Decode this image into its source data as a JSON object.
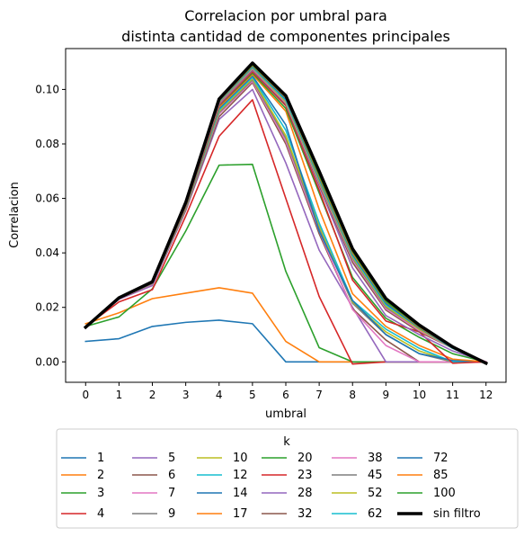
{
  "chart_data": {
    "type": "line",
    "title_lines": [
      "Correlacion por umbral para",
      "distinta cantidad de componentes principales"
    ],
    "xlabel": "umbral",
    "ylabel": "Correlacion",
    "x": [
      0,
      1,
      2,
      3,
      4,
      5,
      6,
      7,
      8,
      9,
      10,
      11,
      12
    ],
    "xticks": [
      "0",
      "1",
      "2",
      "3",
      "4",
      "5",
      "6",
      "7",
      "8",
      "9",
      "10",
      "11",
      "12"
    ],
    "yticks": [
      {
        "value": 0.0,
        "label": "0.00"
      },
      {
        "value": 0.02,
        "label": "0.02"
      },
      {
        "value": 0.04,
        "label": "0.04"
      },
      {
        "value": 0.06,
        "label": "0.06"
      },
      {
        "value": 0.08,
        "label": "0.08"
      },
      {
        "value": 0.1,
        "label": "0.10"
      }
    ],
    "xlim": [
      -0.6,
      12.6
    ],
    "ylim": [
      -0.0075,
      0.115
    ],
    "grid": false,
    "legend": {
      "title": "k",
      "placement": "below",
      "columns": 6
    },
    "series": [
      {
        "name": "1",
        "color": "#1f77b4",
        "values": [
          0.0075,
          0.0085,
          0.013,
          0.0145,
          0.0153,
          0.014,
          0.0,
          0.0,
          0.0,
          0.0,
          0.0,
          0.0,
          0.0
        ]
      },
      {
        "name": "2",
        "color": "#ff7f0e",
        "values": [
          0.014,
          0.018,
          0.0232,
          0.0252,
          0.0272,
          0.0252,
          0.0075,
          0.0,
          0.0,
          0.0,
          0.0,
          0.0,
          0.0
        ]
      },
      {
        "name": "3",
        "color": "#2ca02c",
        "values": [
          0.013,
          0.0165,
          0.0268,
          0.048,
          0.0722,
          0.0725,
          0.0332,
          0.0052,
          0.0,
          0.0,
          0.0,
          0.0,
          0.0
        ]
      },
      {
        "name": "4",
        "color": "#d62728",
        "values": [
          0.013,
          0.022,
          0.0265,
          0.0535,
          0.0828,
          0.0962,
          0.06,
          0.024,
          -0.0008,
          0.0,
          0.0,
          0.0,
          0.0
        ]
      },
      {
        "name": "5",
        "color": "#9467bd",
        "values": [
          0.013,
          0.023,
          0.028,
          0.0555,
          0.089,
          0.1,
          0.073,
          0.041,
          0.02,
          0.0,
          0.0,
          0.0,
          0.0
        ]
      },
      {
        "name": "6",
        "color": "#8c564b",
        "values": [
          0.013,
          0.0232,
          0.0285,
          0.0558,
          0.09,
          0.1025,
          0.08,
          0.047,
          0.0195,
          0.008,
          0.0,
          0.0,
          0.0
        ]
      },
      {
        "name": "7",
        "color": "#e377c2",
        "values": [
          0.013,
          0.0233,
          0.0285,
          0.0562,
          0.091,
          0.103,
          0.081,
          0.048,
          0.0192,
          0.006,
          0.0,
          0.0,
          0.0
        ]
      },
      {
        "name": "9",
        "color": "#7f7f7f",
        "values": [
          0.013,
          0.0233,
          0.0287,
          0.0563,
          0.0915,
          0.1035,
          0.082,
          0.049,
          0.0215,
          0.01,
          0.003,
          0.0,
          0.0
        ]
      },
      {
        "name": "10",
        "color": "#bcbd22",
        "values": [
          0.013,
          0.0233,
          0.0288,
          0.0565,
          0.092,
          0.104,
          0.083,
          0.05,
          0.022,
          0.011,
          0.004,
          0.0,
          0.0
        ]
      },
      {
        "name": "12",
        "color": "#17becf",
        "values": [
          0.013,
          0.0234,
          0.0288,
          0.0567,
          0.0925,
          0.1045,
          0.085,
          0.051,
          0.0225,
          0.012,
          0.005,
          0.0,
          0.0
        ]
      },
      {
        "name": "14",
        "color": "#1f77b4",
        "values": [
          0.013,
          0.0234,
          0.0289,
          0.0568,
          0.093,
          0.105,
          0.087,
          0.048,
          0.0225,
          0.01,
          0.003,
          0.0005,
          0.0
        ]
      },
      {
        "name": "17",
        "color": "#ff7f0e",
        "values": [
          0.013,
          0.0234,
          0.0289,
          0.057,
          0.0935,
          0.1055,
          0.092,
          0.056,
          0.025,
          0.013,
          0.006,
          0.001,
          0.0
        ]
      },
      {
        "name": "20",
        "color": "#2ca02c",
        "values": [
          0.013,
          0.0234,
          0.029,
          0.0572,
          0.094,
          0.106,
          0.093,
          0.062,
          0.031,
          0.016,
          0.009,
          0.003,
          0.0
        ]
      },
      {
        "name": "23",
        "color": "#d62728",
        "values": [
          0.013,
          0.0235,
          0.029,
          0.0573,
          0.0942,
          0.1065,
          0.094,
          0.063,
          0.03,
          0.015,
          0.011,
          -0.0005,
          0.0
        ]
      },
      {
        "name": "28",
        "color": "#9467bd",
        "values": [
          0.013,
          0.0235,
          0.029,
          0.0575,
          0.0945,
          0.107,
          0.0945,
          0.0645,
          0.0345,
          0.017,
          0.01,
          0.004,
          0.0
        ]
      },
      {
        "name": "32",
        "color": "#8c564b",
        "values": [
          0.013,
          0.0235,
          0.0291,
          0.0576,
          0.0948,
          0.1072,
          0.0945,
          0.065,
          0.0365,
          0.019,
          0.011,
          0.005,
          0.0
        ]
      },
      {
        "name": "38",
        "color": "#e377c2",
        "values": [
          0.013,
          0.0235,
          0.0291,
          0.0577,
          0.095,
          0.1075,
          0.095,
          0.0655,
          0.0375,
          0.0195,
          0.0115,
          0.005,
          0.0
        ]
      },
      {
        "name": "45",
        "color": "#7f7f7f",
        "values": [
          0.013,
          0.0235,
          0.0291,
          0.0578,
          0.0952,
          0.1078,
          0.0955,
          0.066,
          0.038,
          0.02,
          0.012,
          0.005,
          -0.0005
        ]
      },
      {
        "name": "52",
        "color": "#bcbd22",
        "values": [
          0.013,
          0.0236,
          0.0292,
          0.0578,
          0.0955,
          0.108,
          0.0955,
          0.0665,
          0.0385,
          0.0205,
          0.012,
          0.005,
          -0.0005
        ]
      },
      {
        "name": "62",
        "color": "#17becf",
        "values": [
          0.013,
          0.0236,
          0.0292,
          0.0579,
          0.0957,
          0.1082,
          0.096,
          0.067,
          0.039,
          0.021,
          0.0125,
          0.005,
          -0.0005
        ]
      },
      {
        "name": "72",
        "color": "#1f77b4",
        "values": [
          0.013,
          0.0236,
          0.0292,
          0.058,
          0.0958,
          0.1085,
          0.0965,
          0.0675,
          0.0395,
          0.0215,
          0.0125,
          0.0052,
          -0.0005
        ]
      },
      {
        "name": "85",
        "color": "#ff7f0e",
        "values": [
          0.013,
          0.0236,
          0.0293,
          0.058,
          0.096,
          0.1088,
          0.097,
          0.068,
          0.04,
          0.022,
          0.0128,
          0.0053,
          -0.0005
        ]
      },
      {
        "name": "100",
        "color": "#2ca02c",
        "values": [
          0.013,
          0.0236,
          0.0293,
          0.0581,
          0.0962,
          0.109,
          0.0972,
          0.0685,
          0.0405,
          0.0222,
          0.013,
          0.0054,
          -0.0005
        ]
      },
      {
        "name": "sin filtro",
        "color": "#000000",
        "bold": true,
        "values": [
          0.0127,
          0.0235,
          0.0294,
          0.0585,
          0.0965,
          0.1097,
          0.0977,
          0.07,
          0.0415,
          0.0232,
          0.0135,
          0.0055,
          -0.0005
        ]
      }
    ]
  }
}
